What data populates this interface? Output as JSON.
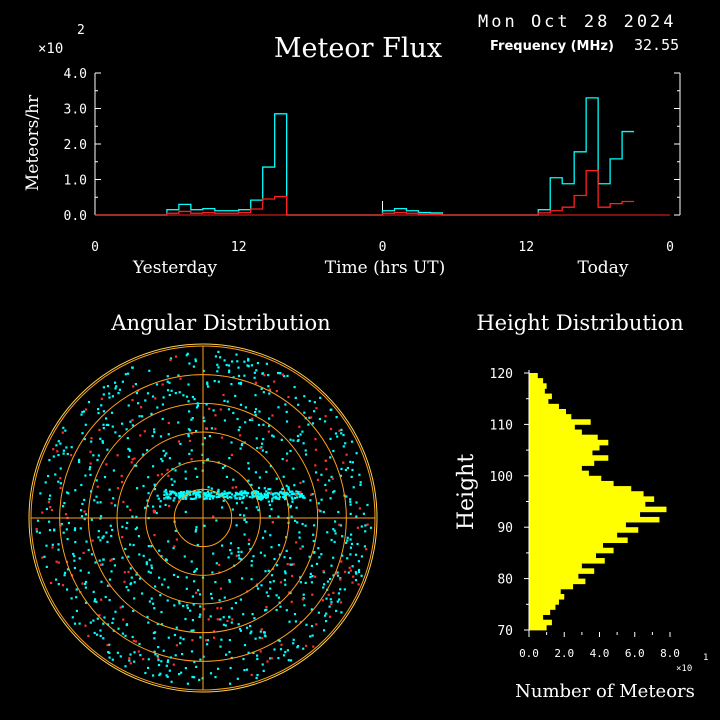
{
  "header": {
    "date": "Mon Oct 28 2024",
    "frequency_label": "Frequency (MHz)",
    "frequency_value": "32.55"
  },
  "chart_data": [
    {
      "type": "line",
      "title": "Meteor Flux",
      "ylabel": "Meteors/hr",
      "xlabel": "Time (hrs UT)",
      "y_multiplier": "×10",
      "y_multiplier_exp": "2",
      "ylim": [
        0,
        4.0
      ],
      "yticks": [
        "0.0",
        "1.0",
        "2.0",
        "3.0",
        "4.0"
      ],
      "xticks": [
        "0",
        "12",
        "0",
        "12",
        "0"
      ],
      "day_labels": [
        "Yesterday",
        "Today"
      ],
      "step_hours": 2,
      "series": [
        {
          "color": "#00ffff",
          "values": [
            0,
            0,
            0,
            0,
            0,
            0,
            0.15,
            0.3,
            0.15,
            0.18,
            0.12,
            0.12,
            0.15,
            0.42,
            1.35,
            2.85,
            0,
            0,
            0,
            0,
            0,
            0,
            0,
            0,
            0.12,
            0.18,
            0.12,
            0.07,
            0.06,
            0,
            0,
            0,
            0,
            0,
            0,
            0,
            0,
            0.15,
            1.05,
            0.88,
            1.78,
            3.3,
            0.88,
            1.58,
            2.35
          ]
        },
        {
          "color": "#ff2020",
          "values": [
            0,
            0,
            0,
            0,
            0,
            0,
            0.05,
            0.1,
            0.05,
            0.07,
            0.05,
            0.05,
            0.07,
            0.17,
            0.45,
            0.52,
            0,
            0,
            0,
            0,
            0,
            0,
            0,
            0,
            0.05,
            0.07,
            0.05,
            0.03,
            0.02,
            0,
            0,
            0,
            0,
            0,
            0,
            0,
            0,
            0.06,
            0.12,
            0.22,
            0.55,
            1.25,
            0.22,
            0.32,
            0.38
          ]
        }
      ]
    },
    {
      "type": "scatter",
      "title": "Angular Distribution",
      "rings": 6,
      "colors": {
        "ring": "#ff9f1c",
        "outer": "#ffd24d",
        "points_a": "#00ffff",
        "points_b": "#ff3030"
      },
      "point_counts": {
        "cyan": 1250,
        "red": 210
      }
    },
    {
      "type": "bar",
      "title": "Height Distribution",
      "ylabel": "Height",
      "xlabel": "Number of Meteors",
      "x_multiplier": "×10",
      "x_multiplier_exp": "1",
      "ylim": [
        70,
        120
      ],
      "xlim": [
        0,
        8.0
      ],
      "yticks": [
        "70",
        "80",
        "90",
        "100",
        "110",
        "120"
      ],
      "xticks": [
        "0.0",
        "2.0",
        "4.0",
        "6.0",
        "8.0"
      ],
      "bar_color": "#ffff00",
      "bin_size": 1,
      "bins_start": 70,
      "values": [
        1.0,
        1.3,
        0.8,
        1.2,
        1.5,
        1.7,
        2.0,
        1.8,
        2.5,
        3.2,
        2.8,
        3.7,
        3.0,
        4.3,
        3.8,
        4.8,
        4.2,
        5.6,
        5.0,
        6.2,
        5.5,
        7.4,
        6.3,
        7.8,
        6.6,
        7.1,
        6.5,
        5.8,
        4.8,
        4.1,
        3.4,
        3.0,
        3.7,
        4.5,
        3.6,
        4.0,
        4.5,
        3.9,
        3.0,
        2.6,
        3.5,
        2.4,
        2.1,
        1.7,
        1.1,
        1.3,
        0.9,
        1.0,
        0.8,
        0.5
      ]
    }
  ]
}
